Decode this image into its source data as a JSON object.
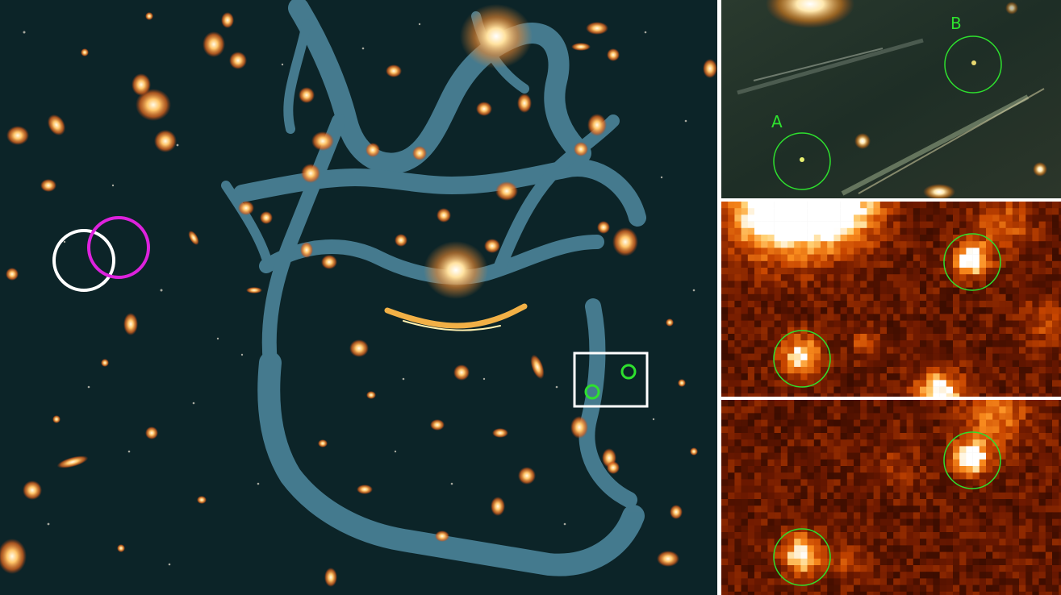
{
  "panels": {
    "zoom_color": {
      "labels": {
        "a": "A",
        "b": "B"
      }
    }
  },
  "colors": {
    "background": "#0c2428",
    "critical_curve": "#4f8aa0",
    "marker_green": "#2ee02e",
    "marker_white": "#ffffff",
    "marker_magenta": "#dd22dd",
    "heat_low": "#1a0400",
    "heat_high": "#ffffff"
  }
}
